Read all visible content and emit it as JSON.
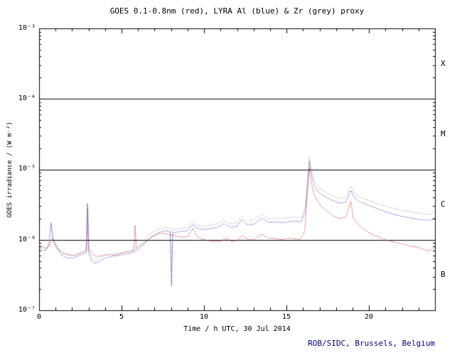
{
  "title": "GOES 0.1-0.8nm (red), LYRA Al (blue) & Zr (grey) proxy",
  "footer": "ROB/SIDC, Brussels, Belgium",
  "colors": {
    "frame": "#000000",
    "footer_text": "#000080",
    "goes_red": "#cc0000",
    "lyra_al_blue": "#2222bb",
    "lyra_zr_grey": "#999999"
  },
  "chart_data": {
    "type": "line",
    "title": "GOES 0.1-0.8nm (red), LYRA Al (blue) & Zr (grey) proxy",
    "xlabel": "Time / h UTC, 30 Jul 2014",
    "ylabel": "GOES irradiance / (W m⁻²)",
    "x_range": [
      0,
      24
    ],
    "x_ticks": [
      0,
      5,
      10,
      15,
      20
    ],
    "x_tick_labels": [
      "0",
      "5",
      "10",
      "15",
      "20"
    ],
    "y_scale": "log",
    "y_range": [
      1e-07,
      0.001
    ],
    "y_tick_labels": [
      "10⁻³",
      "10⁻⁴",
      "10⁻⁵",
      "10⁻⁶",
      "10⁻⁷"
    ],
    "hlines": [
      0.0001,
      1e-05,
      1e-06
    ],
    "flare_class_labels": [
      "X",
      "M",
      "C",
      "B"
    ],
    "grid": "off",
    "legend": "in-title",
    "series": [
      {
        "name": "GOES 0.1-0.8nm",
        "color": "#cc0000",
        "style": "dotted",
        "points": [
          [
            0,
            9e-07
          ],
          [
            0.2,
            8e-07
          ],
          [
            0.4,
            7.5e-07
          ],
          [
            0.6,
            8e-07
          ],
          [
            0.8,
            1.05e-06
          ],
          [
            0.95,
            8.5e-07
          ],
          [
            1.2,
            7e-07
          ],
          [
            1.5,
            6.5e-07
          ],
          [
            1.8,
            6.2e-07
          ],
          [
            2.1,
            6e-07
          ],
          [
            2.4,
            6.3e-07
          ],
          [
            2.7,
            6.8e-07
          ],
          [
            2.88,
            7e-07
          ],
          [
            2.95,
            2.8e-06
          ],
          [
            3.02,
            7.5e-07
          ],
          [
            3.3,
            6e-07
          ],
          [
            3.6,
            5.8e-07
          ],
          [
            3.9,
            6e-07
          ],
          [
            4.2,
            6.2e-07
          ],
          [
            4.6,
            6e-07
          ],
          [
            5,
            6.5e-07
          ],
          [
            5.4,
            6.8e-07
          ],
          [
            5.75,
            7e-07
          ],
          [
            5.82,
            1.6e-06
          ],
          [
            5.9,
            7.5e-07
          ],
          [
            6.2,
            8.5e-07
          ],
          [
            6.6,
            1e-06
          ],
          [
            7,
            1.15e-06
          ],
          [
            7.4,
            1.25e-06
          ],
          [
            7.8,
            1.2e-06
          ],
          [
            8.2,
            1.15e-06
          ],
          [
            8.6,
            1.1e-06
          ],
          [
            9,
            1.1e-06
          ],
          [
            9.3,
            1.45e-06
          ],
          [
            9.6,
            1.1e-06
          ],
          [
            10,
            1e-06
          ],
          [
            10.5,
            9.5e-07
          ],
          [
            11,
            9.5e-07
          ],
          [
            11.3,
            1.05e-06
          ],
          [
            11.7,
            9.5e-07
          ],
          [
            12,
            9.8e-07
          ],
          [
            12.3,
            1.15e-06
          ],
          [
            12.7,
            1e-06
          ],
          [
            13,
            1e-06
          ],
          [
            13.5,
            1.2e-06
          ],
          [
            13.9,
            1.05e-06
          ],
          [
            14.3,
            1.05e-06
          ],
          [
            14.7,
            1e-06
          ],
          [
            15,
            1.05e-06
          ],
          [
            15.4,
            1.05e-06
          ],
          [
            15.8,
            1e-06
          ],
          [
            16.1,
            1.3e-06
          ],
          [
            16.25,
            4e-06
          ],
          [
            16.38,
            1.05e-05
          ],
          [
            16.5,
            6.5e-06
          ],
          [
            16.7,
            4.2e-06
          ],
          [
            17,
            3.2e-06
          ],
          [
            17.4,
            2.6e-06
          ],
          [
            17.8,
            2.2e-06
          ],
          [
            18.2,
            2e-06
          ],
          [
            18.6,
            2.1e-06
          ],
          [
            18.9,
            3.5e-06
          ],
          [
            19.05,
            2e-06
          ],
          [
            19.4,
            1.6e-06
          ],
          [
            19.8,
            1.35e-06
          ],
          [
            20.2,
            1.2e-06
          ],
          [
            20.6,
            1.1e-06
          ],
          [
            21,
            1e-06
          ],
          [
            21.5,
            9.3e-07
          ],
          [
            22,
            8.8e-07
          ],
          [
            22.5,
            8.2e-07
          ],
          [
            23,
            7.8e-07
          ],
          [
            23.4,
            7.2e-07
          ],
          [
            23.7,
            7e-07
          ],
          [
            24,
            7.8e-07
          ]
        ]
      },
      {
        "name": "LYRA Al proxy",
        "color": "#2222bb",
        "style": "dotted",
        "points": [
          [
            0,
            8e-07
          ],
          [
            0.2,
            7.2e-07
          ],
          [
            0.4,
            7e-07
          ],
          [
            0.6,
            8.5e-07
          ],
          [
            0.72,
            1.7e-06
          ],
          [
            0.85,
            1e-06
          ],
          [
            1.1,
            7.5e-07
          ],
          [
            1.4,
            6e-07
          ],
          [
            1.7,
            5.5e-07
          ],
          [
            2,
            5.5e-07
          ],
          [
            2.3,
            5.8e-07
          ],
          [
            2.6,
            6.2e-07
          ],
          [
            2.85,
            6.5e-07
          ],
          [
            2.93,
            3.3e-06
          ],
          [
            3.0,
            6.5e-07
          ],
          [
            3.2,
            5e-07
          ],
          [
            3.4,
            4.6e-07
          ],
          [
            3.7,
            5e-07
          ],
          [
            4,
            5.5e-07
          ],
          [
            4.4,
            5.8e-07
          ],
          [
            4.8,
            6e-07
          ],
          [
            5.2,
            6.2e-07
          ],
          [
            5.6,
            6.5e-07
          ],
          [
            6,
            7.2e-07
          ],
          [
            6.4,
            9e-07
          ],
          [
            6.8,
            1.1e-06
          ],
          [
            7.2,
            1.25e-06
          ],
          [
            7.6,
            1.35e-06
          ],
          [
            7.95,
            1.3e-06
          ],
          [
            8.03,
            2.2e-07
          ],
          [
            8.1,
            1.25e-06
          ],
          [
            8.5,
            1.3e-06
          ],
          [
            9,
            1.35e-06
          ],
          [
            9.3,
            1.65e-06
          ],
          [
            9.6,
            1.45e-06
          ],
          [
            10,
            1.4e-06
          ],
          [
            10.4,
            1.45e-06
          ],
          [
            10.8,
            1.5e-06
          ],
          [
            11.2,
            1.7e-06
          ],
          [
            11.6,
            1.5e-06
          ],
          [
            12,
            1.55e-06
          ],
          [
            12.3,
            1.95e-06
          ],
          [
            12.6,
            1.65e-06
          ],
          [
            13,
            1.65e-06
          ],
          [
            13.5,
            2.05e-06
          ],
          [
            13.9,
            1.75e-06
          ],
          [
            14.3,
            1.8e-06
          ],
          [
            14.7,
            1.75e-06
          ],
          [
            15.1,
            1.8e-06
          ],
          [
            15.5,
            1.85e-06
          ],
          [
            15.9,
            1.8e-06
          ],
          [
            16.15,
            2.6e-06
          ],
          [
            16.38,
            1.3e-05
          ],
          [
            16.5,
            8.5e-06
          ],
          [
            16.7,
            5.8e-06
          ],
          [
            17,
            4.6e-06
          ],
          [
            17.4,
            4e-06
          ],
          [
            17.8,
            3.6e-06
          ],
          [
            18.2,
            3.3e-06
          ],
          [
            18.6,
            3.4e-06
          ],
          [
            18.9,
            5e-06
          ],
          [
            19.1,
            4e-06
          ],
          [
            19.4,
            3.5e-06
          ],
          [
            19.8,
            3.2e-06
          ],
          [
            20.2,
            2.95e-06
          ],
          [
            20.6,
            2.7e-06
          ],
          [
            21,
            2.5e-06
          ],
          [
            21.5,
            2.3e-06
          ],
          [
            22,
            2.15e-06
          ],
          [
            22.5,
            2.05e-06
          ],
          [
            23,
            1.95e-06
          ],
          [
            23.4,
            1.9e-06
          ],
          [
            23.7,
            1.9e-06
          ],
          [
            24,
            2.05e-06
          ]
        ]
      },
      {
        "name": "LYRA Zr proxy",
        "color": "#999999",
        "style": "dotted",
        "points": [
          [
            0,
            8.6e-07
          ],
          [
            0.2,
            7.8e-07
          ],
          [
            0.4,
            7.5e-07
          ],
          [
            0.6,
            9e-07
          ],
          [
            0.72,
            1.8e-06
          ],
          [
            0.85,
            1.05e-06
          ],
          [
            1.1,
            8e-07
          ],
          [
            1.4,
            6.5e-07
          ],
          [
            1.7,
            6e-07
          ],
          [
            2,
            6e-07
          ],
          [
            2.3,
            6.2e-07
          ],
          [
            2.6,
            6.6e-07
          ],
          [
            2.85,
            7e-07
          ],
          [
            2.93,
            3.1e-06
          ],
          [
            3.0,
            7e-07
          ],
          [
            3.2,
            5.5e-07
          ],
          [
            3.4,
            5e-07
          ],
          [
            3.7,
            5.5e-07
          ],
          [
            4,
            6e-07
          ],
          [
            4.4,
            6.2e-07
          ],
          [
            4.8,
            6.4e-07
          ],
          [
            5.2,
            6.6e-07
          ],
          [
            5.6,
            7e-07
          ],
          [
            6,
            7.8e-07
          ],
          [
            6.4,
            1e-06
          ],
          [
            6.8,
            1.25e-06
          ],
          [
            7.2,
            1.4e-06
          ],
          [
            7.6,
            1.5e-06
          ],
          [
            7.95,
            1.45e-06
          ],
          [
            8.03,
            2.6e-07
          ],
          [
            8.1,
            1.4e-06
          ],
          [
            8.5,
            1.45e-06
          ],
          [
            9,
            1.5e-06
          ],
          [
            9.3,
            1.85e-06
          ],
          [
            9.6,
            1.6e-06
          ],
          [
            10,
            1.55e-06
          ],
          [
            10.4,
            1.6e-06
          ],
          [
            10.8,
            1.7e-06
          ],
          [
            11.2,
            1.9e-06
          ],
          [
            11.6,
            1.7e-06
          ],
          [
            12,
            1.75e-06
          ],
          [
            12.3,
            2.2e-06
          ],
          [
            12.6,
            1.85e-06
          ],
          [
            13,
            1.9e-06
          ],
          [
            13.5,
            2.35e-06
          ],
          [
            13.9,
            2e-06
          ],
          [
            14.3,
            2.05e-06
          ],
          [
            14.7,
            2e-06
          ],
          [
            15.1,
            2.05e-06
          ],
          [
            15.5,
            2.1e-06
          ],
          [
            15.9,
            2.05e-06
          ],
          [
            16.15,
            3e-06
          ],
          [
            16.38,
            1.5e-05
          ],
          [
            16.5,
            1e-05
          ],
          [
            16.7,
            6.8e-06
          ],
          [
            17,
            5.4e-06
          ],
          [
            17.4,
            4.7e-06
          ],
          [
            17.8,
            4.2e-06
          ],
          [
            18.2,
            3.9e-06
          ],
          [
            18.6,
            4e-06
          ],
          [
            18.9,
            5.8e-06
          ],
          [
            19.1,
            4.7e-06
          ],
          [
            19.4,
            4.1e-06
          ],
          [
            19.8,
            3.75e-06
          ],
          [
            20.2,
            3.45e-06
          ],
          [
            20.6,
            3.2e-06
          ],
          [
            21,
            3e-06
          ],
          [
            21.5,
            2.8e-06
          ],
          [
            22,
            2.6e-06
          ],
          [
            22.5,
            2.5e-06
          ],
          [
            23,
            2.4e-06
          ],
          [
            23.4,
            2.3e-06
          ],
          [
            23.7,
            2.3e-06
          ],
          [
            24,
            2.5e-06
          ]
        ]
      }
    ]
  }
}
